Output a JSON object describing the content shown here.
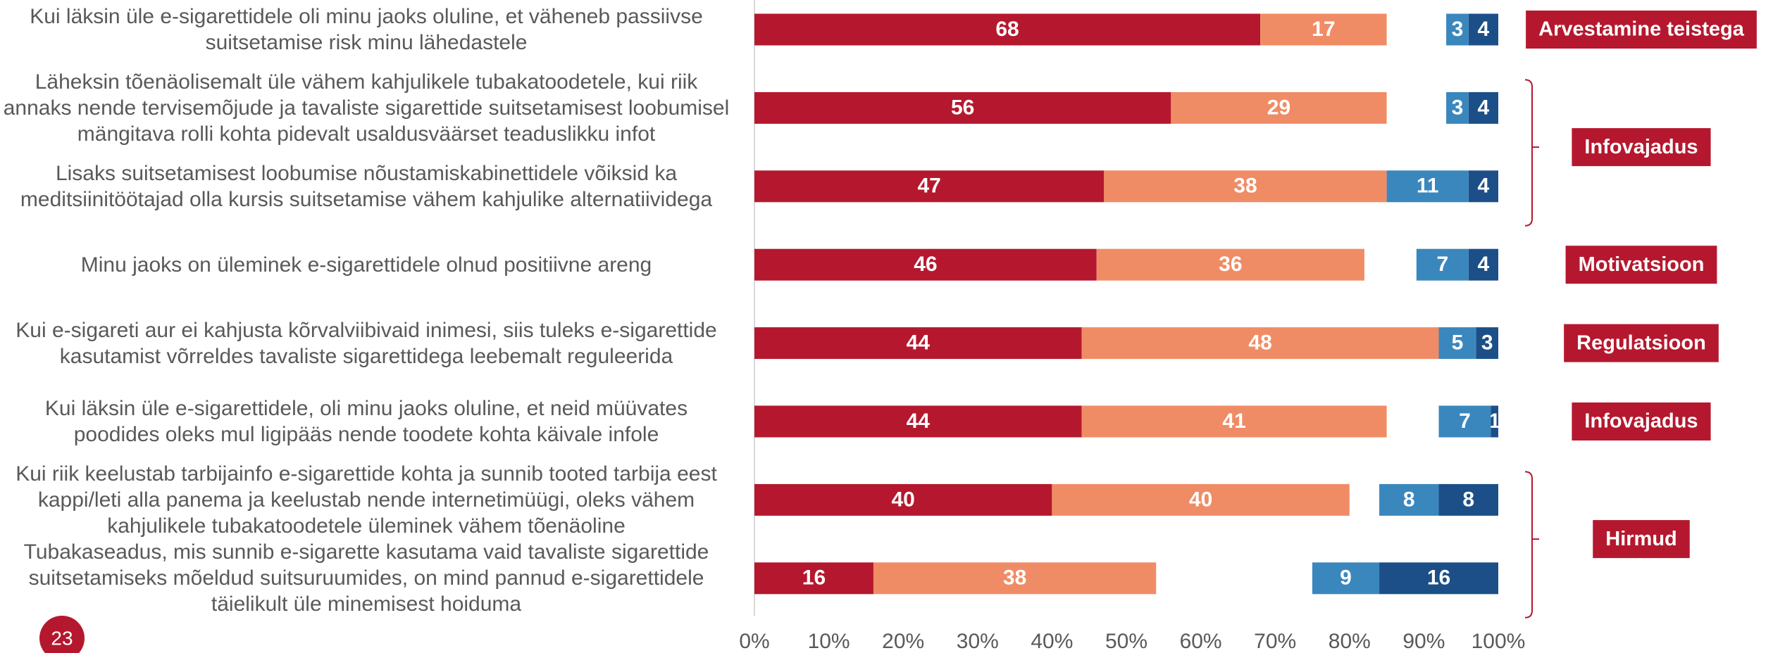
{
  "chart_data": {
    "type": "bar",
    "orientation": "horizontal",
    "categories": [
      "Kui läksin üle e-sigarettidele oli minu jaoks oluline, et väheneb passiivse suitsetamise risk minu lähedastele",
      "Läheksin tõenäolisemalt üle vähem kahjulikele tubakatoodetele, kui riik annaks nende tervisemõjude ja tavaliste sigarettide suitsetamisest loobumisel mängitava rolli kohta pidevalt usaldusväärset teaduslikku infot",
      "Lisaks suitsetamisest loobumise nõustamiskabinettidele võiksid ka meditsiinitöötajad olla kursis suitsetamise vähem kahjulike alternatiividega",
      "Minu jaoks on üleminek e-sigarettidele olnud positiivne areng",
      "Kui e-sigareti aur ei kahjusta kõrvalviibivaid inimesi, siis tuleks e-sigarettide kasutamist võrreldes tavaliste sigarettidega leebemalt reguleerida",
      "Kui läksin üle e-sigarettidele, oli minu jaoks oluline, et neid müüvates poodides oleks mul ligipääs nende toodete kohta käivale infole",
      "Kui riik keelustab tarbijainfo e-sigarettide kohta ja sunnib tooted tarbija eest kappi/leti alla panema ja keelustab nende internetimüügi, oleks vähem kahjulikele tubakatoodetele üleminek vähem tõenäoline",
      "Tubakaseadus, mis sunnib e-sigarette kasutama vaid tavaliste sigarettide suitsetamiseks mõeldud suitsuruumides, on mind pannud e-sigarettidele täielikult üle minemisest hoiduma"
    ],
    "series": [
      {
        "color": "#b5182e",
        "values": [
          68,
          56,
          47,
          46,
          44,
          44,
          40,
          16
        ]
      },
      {
        "color": "#f08c65",
        "values": [
          17,
          29,
          38,
          36,
          48,
          41,
          40,
          38
        ]
      },
      {
        "color": "#3a87bd",
        "stack_from": "right",
        "values": [
          3,
          3,
          11,
          7,
          5,
          7,
          8,
          9
        ]
      },
      {
        "color": "#1c4f87",
        "stack_from": "right",
        "values": [
          4,
          4,
          4,
          4,
          3,
          1,
          8,
          16
        ]
      }
    ],
    "group_labels": [
      "Arvestamine teistega",
      "Infovajadus",
      null,
      "Motivatsioon",
      "Regulatsioon",
      "Infovajadus",
      "Hirmud",
      null
    ],
    "xlim": [
      0,
      100
    ],
    "xticks": [
      {
        "value": 0,
        "label": "0%"
      },
      {
        "value": 10,
        "label": "10%"
      },
      {
        "value": 20,
        "label": "20%"
      },
      {
        "value": 30,
        "label": "30%"
      },
      {
        "value": 40,
        "label": "40%"
      },
      {
        "value": 50,
        "label": "50%"
      },
      {
        "value": 60,
        "label": "60%"
      },
      {
        "value": 70,
        "label": "70%"
      },
      {
        "value": 80,
        "label": "80%"
      },
      {
        "value": 90,
        "label": "90%"
      },
      {
        "value": 100,
        "label": "100%"
      }
    ],
    "page_number": "23"
  }
}
